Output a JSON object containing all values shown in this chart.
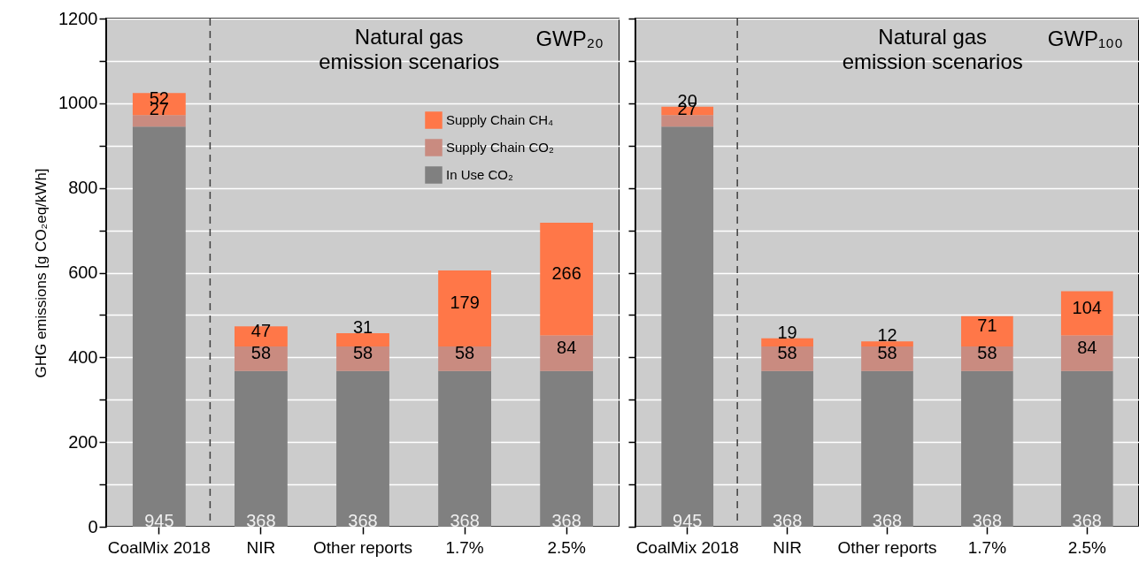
{
  "chart_data": [
    {
      "type": "bar",
      "stacked": true,
      "title": "GWP₂₀",
      "annotations": [
        "Natural gas emission scenarios"
      ],
      "ylabel": "GHG emissions [g CO₂eq/kWh]",
      "categories": [
        "CoalMix 2018",
        "NIR",
        "Other reports",
        "1.7%",
        "2.5%"
      ],
      "series": [
        {
          "name": "In Use CO₂",
          "color": "#808080",
          "values": [
            945,
            368,
            368,
            368,
            368
          ]
        },
        {
          "name": "Supply Chain CO₂",
          "color": "#c98b80",
          "values": [
            27,
            58,
            58,
            58,
            84
          ]
        },
        {
          "name": "Supply Chain CH₄",
          "color": "#ff7748",
          "values": [
            52,
            47,
            31,
            179,
            266
          ]
        }
      ],
      "ylim": [
        0,
        1200
      ],
      "yticks": [
        0,
        {
          "value": 100,
          "label": null
        },
        200,
        {
          "value": 300,
          "label": null
        },
        400,
        {
          "value": 500,
          "label": null
        },
        600,
        {
          "value": 700,
          "label": null
        },
        800,
        {
          "value": 900,
          "label": null
        },
        1000,
        {
          "value": 1100,
          "label": null
        },
        1200
      ],
      "grid": "y",
      "legend": "top right",
      "data_labels": true
    },
    {
      "type": "bar",
      "stacked": true,
      "title": "GWP₁₀₀",
      "annotations": [
        "Natural gas emission scenarios"
      ],
      "categories": [
        "CoalMix 2018",
        "NIR",
        "Other reports",
        "1.7%",
        "2.5%"
      ],
      "series": [
        {
          "color": "#808080",
          "values": [
            945,
            368,
            368,
            368,
            368
          ]
        },
        {
          "color": "#c98b80",
          "values": [
            27,
            58,
            58,
            58,
            84
          ]
        },
        {
          "color": "#ff7748",
          "values": [
            20,
            19,
            12,
            71,
            104
          ]
        }
      ],
      "ylim": [
        0,
        1200
      ],
      "yticks": [
        0,
        {
          "value": 100,
          "label": null
        },
        200,
        {
          "value": 300,
          "label": null
        },
        400,
        {
          "value": 500,
          "label": null
        },
        600,
        {
          "value": 700,
          "label": null
        },
        800,
        {
          "value": 900,
          "label": null
        },
        1000,
        {
          "value": 1100,
          "label": null
        },
        1200
      ],
      "grid": "y",
      "tick_labels": "x",
      "data_labels": true
    }
  ]
}
